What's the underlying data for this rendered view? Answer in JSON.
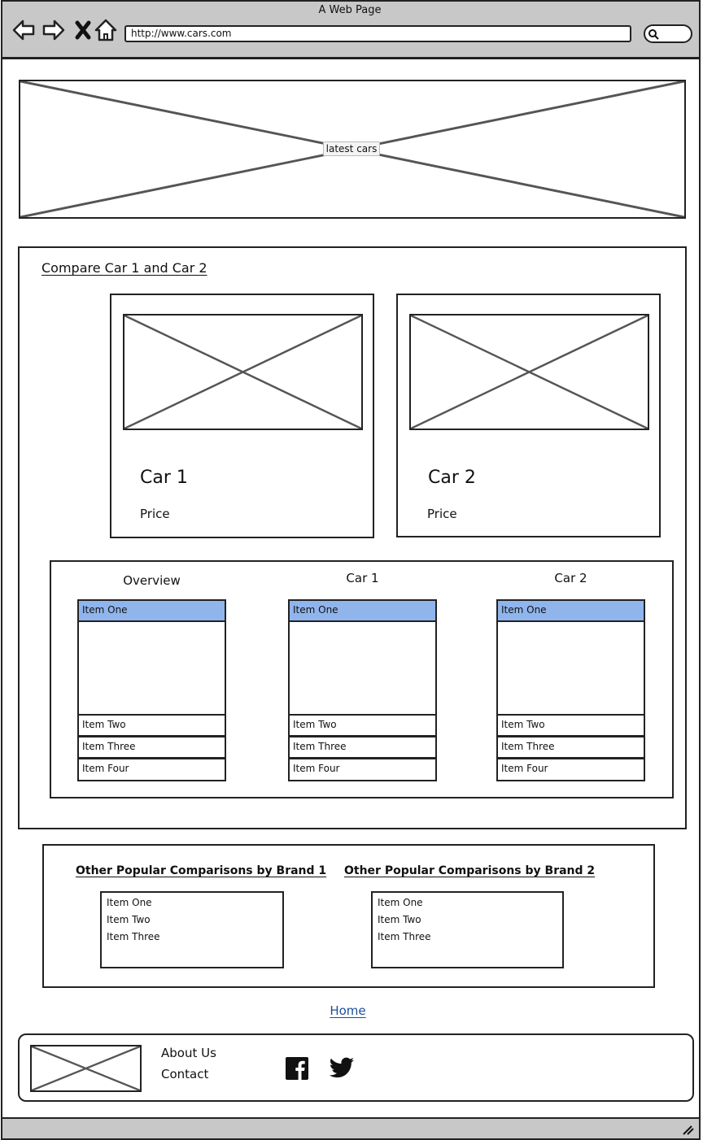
{
  "browser": {
    "window_title": "A Web Page",
    "url": "http://www.cars.com"
  },
  "banner": {
    "label": "latest cars"
  },
  "compare": {
    "title": "Compare Car 1 and Car 2",
    "cards": [
      {
        "name": "Car 1",
        "price_label": "Price"
      },
      {
        "name": "Car 2",
        "price_label": "Price"
      }
    ],
    "columns": [
      {
        "header": "Overview",
        "items": [
          "Item One",
          "Item Two",
          "Item Three",
          "Item Four"
        ]
      },
      {
        "header": "Car 1",
        "items": [
          "Item One",
          "Item Two",
          "Item Three",
          "Item Four"
        ]
      },
      {
        "header": "Car 2",
        "items": [
          "Item One",
          "Item Two",
          "Item Three",
          "Item Four"
        ]
      }
    ]
  },
  "popular": {
    "brand1_title": "Other Popular Comparisons by Brand 1",
    "brand1_items": [
      "Item One",
      "Item Two",
      "Item Three"
    ],
    "brand2_title": "Other Popular Comparisons by Brand 2",
    "brand2_items": [
      "Item One",
      "Item Two",
      "Item Three"
    ]
  },
  "home_link": "Home",
  "footer": {
    "about": "About Us",
    "contact": "Contact",
    "social": [
      "facebook-icon",
      "twitter-icon"
    ]
  },
  "colors": {
    "chrome": "#c8c8c8",
    "selected_row": "#8fb5ec",
    "link": "#1a4f9c",
    "placeholder_line": "#555555"
  }
}
